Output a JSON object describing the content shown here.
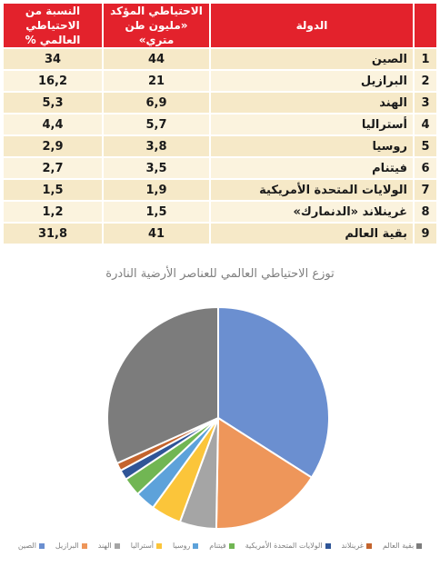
{
  "table": {
    "headers": {
      "index": "",
      "country": "الدولة",
      "reserve": "الاحتياطي المؤكد «مليون طن متري»",
      "share": "النسبة من الاحتياطي العالمي %"
    },
    "rows": [
      {
        "index": "1",
        "country": "الصين",
        "reserve": "44",
        "share": "34"
      },
      {
        "index": "2",
        "country": "البرازيل",
        "reserve": "21",
        "share": "16,2"
      },
      {
        "index": "3",
        "country": "الهند",
        "reserve": "6,9",
        "share": "5,3"
      },
      {
        "index": "4",
        "country": "أستراليا",
        "reserve": "5,7",
        "share": "4,4"
      },
      {
        "index": "5",
        "country": "روسيا",
        "reserve": "3,8",
        "share": "2,9"
      },
      {
        "index": "6",
        "country": "فيتنام",
        "reserve": "3,5",
        "share": "2,7"
      },
      {
        "index": "7",
        "country": "الولايات المتحدة الأمريكية",
        "reserve": "1,9",
        "share": "1,5"
      },
      {
        "index": "8",
        "country": "غرينلاند «الدنمارك»",
        "reserve": "1,5",
        "share": "1,2"
      },
      {
        "index": "9",
        "country": "بقية العالم",
        "reserve": "41",
        "share": "31,8"
      }
    ]
  },
  "chart_data": {
    "type": "pie",
    "title": "توزع الاحتياطي العالمي للعناصر الأرضية النادرة",
    "legend_position": "bottom",
    "slices": [
      {
        "name": "الصين",
        "value": 44,
        "color": "#6b8fd0"
      },
      {
        "name": "البرازيل",
        "value": 21,
        "color": "#ee965a"
      },
      {
        "name": "الهند",
        "value": 6.9,
        "color": "#a5a5a5"
      },
      {
        "name": "أستراليا",
        "value": 5.7,
        "color": "#fbc53a"
      },
      {
        "name": "روسيا",
        "value": 3.8,
        "color": "#5da2da"
      },
      {
        "name": "فيتنام",
        "value": 3.5,
        "color": "#71b653"
      },
      {
        "name": "الولايات المتحدة الأمريكية",
        "value": 1.9,
        "color": "#2f5597"
      },
      {
        "name": "غرينلاند",
        "value": 1.5,
        "color": "#c4642d"
      },
      {
        "name": "بقية العالم",
        "value": 41,
        "color": "#7c7c7c"
      }
    ]
  }
}
